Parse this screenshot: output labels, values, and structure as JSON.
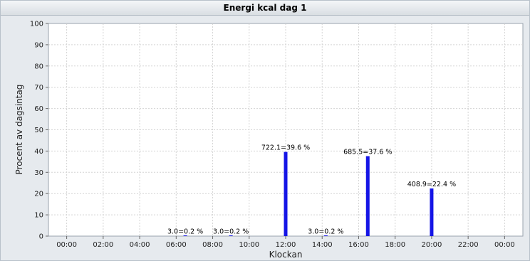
{
  "window": {
    "title": "Energi kcal  dag 1"
  },
  "chart_data": {
    "type": "bar",
    "title": "Energi kcal  dag 1",
    "xlabel": "Klockan",
    "ylabel": "Procent av dagsintag",
    "ylim": [
      0,
      100
    ],
    "yticks": [
      "0",
      "10",
      "20",
      "30",
      "40",
      "50",
      "60",
      "70",
      "80",
      "90",
      "100"
    ],
    "xlim_hours": [
      -1,
      25
    ],
    "xticks": [
      "00:00",
      "02:00",
      "04:00",
      "06:00",
      "08:00",
      "10:00",
      "12:00",
      "14:00",
      "16:00",
      "18:00",
      "20:00",
      "22:00",
      "00:00"
    ],
    "grid": true,
    "series": [
      {
        "points": [
          {
            "time_h": 6.5,
            "value": 0.2,
            "label": "3.0=0.2 %"
          },
          {
            "time_h": 9.0,
            "value": 0.2,
            "label": "3.0=0.2 %"
          },
          {
            "time_h": 12.0,
            "value": 39.6,
            "label": "722.1=39.6 %"
          },
          {
            "time_h": 14.2,
            "value": 0.2,
            "label": "3.0=0.2 %"
          },
          {
            "time_h": 16.5,
            "value": 37.6,
            "label": "685.5=37.6 %"
          },
          {
            "time_h": 20.0,
            "value": 22.4,
            "label": "408.9=22.4 %"
          }
        ],
        "color": "#1515e6"
      }
    ]
  }
}
